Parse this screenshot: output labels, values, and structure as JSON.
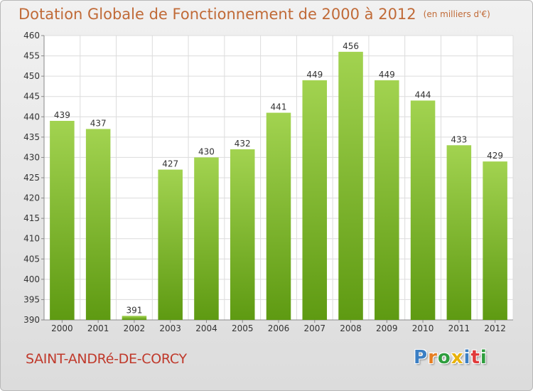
{
  "header": {
    "title": "Dotation Globale de Fonctionnement de 2000 à 2012",
    "unit": "(en milliers d'€)"
  },
  "footer": {
    "place_name": "SAINT-ANDRé-DE-CORCY",
    "brand_letters": [
      "P",
      "r",
      "o",
      "x",
      "i",
      "t",
      "i"
    ],
    "brand_colors": [
      "#3b7fc4",
      "#e67e22",
      "#2e9e3e",
      "#e8b20c",
      "#3b7fc4",
      "#e03a3a",
      "#2e9e3e"
    ]
  },
  "colors": {
    "bar_top": "#a2d350",
    "bar_bottom": "#5e9a12",
    "title": "#c06a37",
    "place": "#c0392b"
  },
  "chart_data": {
    "type": "bar",
    "categories": [
      "2000",
      "2001",
      "2002",
      "2003",
      "2004",
      "2005",
      "2006",
      "2007",
      "2008",
      "2009",
      "2010",
      "2011",
      "2012"
    ],
    "values": [
      439,
      437,
      391,
      427,
      430,
      432,
      441,
      449,
      456,
      449,
      444,
      433,
      429
    ],
    "ylim": [
      390,
      460
    ],
    "yticks": [
      390,
      395,
      400,
      405,
      410,
      415,
      420,
      425,
      430,
      435,
      440,
      445,
      450,
      455,
      460
    ],
    "grid": true,
    "data_labels": true
  }
}
